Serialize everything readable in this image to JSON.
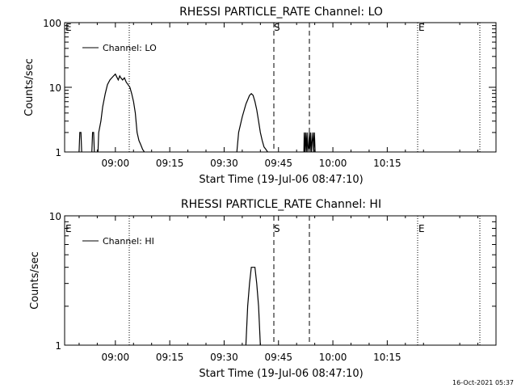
{
  "chart_data": [
    {
      "type": "line",
      "title": "RHESSI PARTICLE_RATE Channel: LO",
      "xlabel": "Start Time (19-Jul-06 08:47:10)",
      "ylabel": "Counts/sec",
      "yscale": "log",
      "ylim": [
        1,
        100
      ],
      "xlim_minutes": [
        -14,
        105
      ],
      "xtick_labels": [
        "09:00",
        "09:15",
        "09:30",
        "09:45",
        "10:00",
        "10:15"
      ],
      "ytick_labels": [
        "1",
        "10",
        "100"
      ],
      "legend": "top-left",
      "series": [
        {
          "name": "Channel: LO",
          "x": [
            -10.0,
            -9.8,
            -9.5,
            -9.3,
            -6.5,
            -6.3,
            -6.0,
            -5.8,
            -4.8,
            -4.6,
            -4.0,
            -3.5,
            -2.8,
            -2.2,
            -1.5,
            -0.5,
            0.0,
            0.5,
            0.8,
            1.2,
            1.5,
            2.0,
            2.5,
            3.0,
            3.5,
            4.0,
            4.5,
            5.0,
            5.5,
            5.7,
            6.0,
            6.5,
            7.0,
            7.5,
            8.0,
            33.5,
            34.0,
            35.0,
            36.0,
            37.0,
            37.5,
            38.0,
            38.5,
            39.0,
            39.5,
            40.0,
            40.5,
            41.0,
            41.5,
            42.0,
            52.0,
            52.1,
            52.3,
            52.5,
            52.7,
            52.9,
            53.1,
            53.3,
            53.5,
            53.7,
            53.9,
            54.1,
            54.3,
            54.5,
            54.7,
            54.9,
            55.1
          ],
          "values": [
            1,
            2,
            2,
            1,
            1,
            2,
            2,
            1,
            1,
            2,
            3,
            5,
            8,
            11,
            13,
            15,
            16,
            14,
            13,
            15,
            14,
            13,
            14,
            12,
            11,
            10,
            8,
            6,
            4,
            3,
            2,
            1.5,
            1.3,
            1.1,
            1,
            1,
            2,
            3.5,
            5.5,
            7.5,
            8,
            7.5,
            6,
            4.5,
            3,
            2,
            1.5,
            1.2,
            1.1,
            1,
            1,
            2,
            1,
            2,
            1,
            2,
            1,
            1.2,
            2,
            1,
            2,
            1,
            1.5,
            2,
            1,
            2,
            1
          ]
        }
      ],
      "annotations": [
        "E",
        "S",
        "E"
      ]
    },
    {
      "type": "line",
      "title": "RHESSI PARTICLE_RATE Channel: HI",
      "xlabel": "Start Time (19-Jul-06 08:47:10)",
      "ylabel": "Counts/sec",
      "yscale": "log",
      "ylim": [
        1,
        10
      ],
      "xlim_minutes": [
        -14,
        105
      ],
      "xtick_labels": [
        "09:00",
        "09:15",
        "09:30",
        "09:45",
        "10:00",
        "10:15"
      ],
      "ytick_labels": [
        "1",
        "10"
      ],
      "legend": "top-left",
      "series": [
        {
          "name": "Channel: HI",
          "x": [
            36.0,
            36.5,
            37.0,
            37.5,
            38.5,
            39.0,
            39.5,
            40.0
          ],
          "values": [
            1,
            2,
            3,
            4,
            4,
            3,
            2,
            1
          ]
        }
      ],
      "annotations": [
        "E",
        "S",
        "E"
      ]
    }
  ],
  "footer_timestamp": "16-Oct-2021 05:37"
}
